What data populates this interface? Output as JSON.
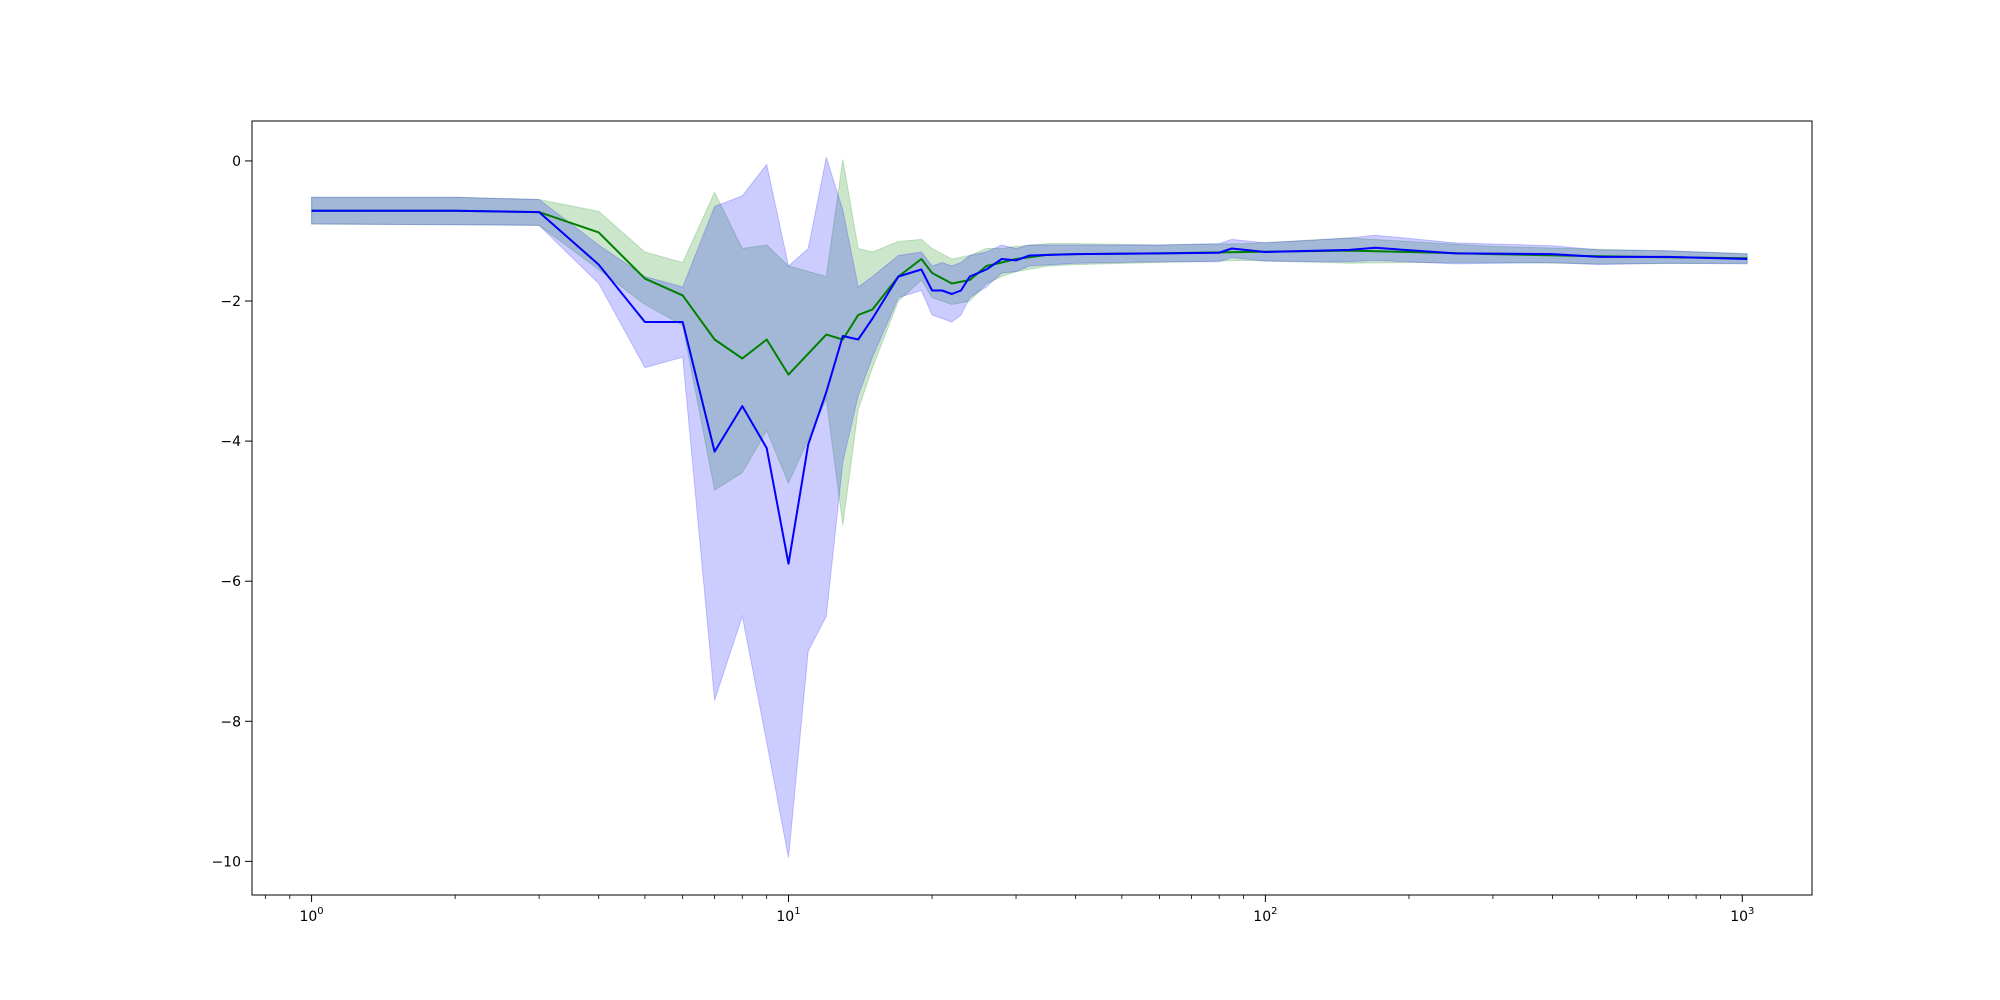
{
  "chart_data": {
    "type": "line",
    "title": "",
    "xlabel": "",
    "ylabel": "",
    "x_scale": "log",
    "xlim": [
      0.75,
      1400
    ],
    "ylim": [
      -10.48,
      0.57
    ],
    "grid": false,
    "legend": "none",
    "x_ticks": [
      {
        "value": 1,
        "base": "10",
        "exp": "0"
      },
      {
        "value": 10,
        "base": "10",
        "exp": "1"
      },
      {
        "value": 100,
        "base": "10",
        "exp": "2"
      },
      {
        "value": 1000,
        "base": "10",
        "exp": "3"
      }
    ],
    "y_ticks": [
      {
        "value": 0,
        "label": "0"
      },
      {
        "value": -2,
        "label": "−2"
      },
      {
        "value": -4,
        "label": "−4"
      },
      {
        "value": -6,
        "label": "−6"
      },
      {
        "value": -8,
        "label": "−8"
      },
      {
        "value": -10,
        "label": "−10"
      }
    ],
    "series": [
      {
        "color": "#008000",
        "band_color": "#008000",
        "points": [
          [
            1,
            -0.71,
            -0.52,
            -0.9
          ],
          [
            2,
            -0.71,
            -0.52,
            -0.91
          ],
          [
            3,
            -0.73,
            -0.55,
            -0.92
          ],
          [
            4,
            -1.02,
            -0.72,
            -1.55
          ],
          [
            5,
            -1.68,
            -1.3,
            -2.05
          ],
          [
            6,
            -1.92,
            -1.45,
            -2.35
          ],
          [
            7,
            -2.55,
            -0.45,
            -4.7
          ],
          [
            8,
            -2.82,
            -1.25,
            -4.45
          ],
          [
            9,
            -2.55,
            -1.2,
            -3.85
          ],
          [
            10,
            -3.05,
            -1.5,
            -4.6
          ],
          [
            12,
            -2.48,
            -1.65,
            -3.4
          ],
          [
            13,
            -2.55,
            0.02,
            -5.2
          ],
          [
            14,
            -2.2,
            -1.25,
            -3.55
          ],
          [
            15,
            -2.12,
            -1.3,
            -2.95
          ],
          [
            17,
            -1.65,
            -1.15,
            -2.0
          ],
          [
            19,
            -1.4,
            -1.12,
            -1.7
          ],
          [
            20,
            -1.6,
            -1.25,
            -1.95
          ],
          [
            22,
            -1.75,
            -1.4,
            -2.05
          ],
          [
            24,
            -1.7,
            -1.35,
            -2.0
          ],
          [
            26,
            -1.5,
            -1.25,
            -1.75
          ],
          [
            28,
            -1.45,
            -1.25,
            -1.65
          ],
          [
            30,
            -1.4,
            -1.22,
            -1.58
          ],
          [
            35,
            -1.34,
            -1.18,
            -1.5
          ],
          [
            40,
            -1.33,
            -1.18,
            -1.48
          ],
          [
            60,
            -1.32,
            -1.2,
            -1.45
          ],
          [
            90,
            -1.3,
            -1.18,
            -1.42
          ],
          [
            150,
            -1.28,
            -1.1,
            -1.46
          ],
          [
            200,
            -1.3,
            -1.15,
            -1.45
          ],
          [
            300,
            -1.33,
            -1.22,
            -1.45
          ],
          [
            500,
            -1.36,
            -1.26,
            -1.47
          ],
          [
            1024,
            -1.39,
            -1.32,
            -1.46
          ]
        ]
      },
      {
        "color": "#0000ff",
        "band_color": "#0000ff",
        "points": [
          [
            1,
            -0.71,
            -0.52,
            -0.9
          ],
          [
            2,
            -0.71,
            -0.52,
            -0.91
          ],
          [
            3,
            -0.73,
            -0.55,
            -0.92
          ],
          [
            4,
            -1.48,
            -1.2,
            -1.75
          ],
          [
            5,
            -2.3,
            -1.65,
            -2.95
          ],
          [
            6,
            -2.3,
            -1.8,
            -2.8
          ],
          [
            7,
            -4.15,
            -0.65,
            -7.7
          ],
          [
            8,
            -3.5,
            -0.5,
            -6.5
          ],
          [
            9,
            -4.1,
            -0.05,
            -8.3
          ],
          [
            10,
            -5.75,
            -1.5,
            -9.95
          ],
          [
            11,
            -4.05,
            -1.25,
            -7.0
          ],
          [
            12,
            -3.3,
            0.05,
            -6.5
          ],
          [
            13,
            -2.5,
            -0.7,
            -4.3
          ],
          [
            14,
            -2.55,
            -1.8,
            -3.35
          ],
          [
            15,
            -2.25,
            -1.65,
            -2.8
          ],
          [
            17,
            -1.65,
            -1.35,
            -1.95
          ],
          [
            19,
            -1.55,
            -1.3,
            -1.85
          ],
          [
            20,
            -1.85,
            -1.5,
            -2.2
          ],
          [
            21,
            -1.85,
            -1.45,
            -2.25
          ],
          [
            22,
            -1.9,
            -1.5,
            -2.3
          ],
          [
            23,
            -1.85,
            -1.45,
            -2.2
          ],
          [
            24,
            -1.65,
            -1.35,
            -1.95
          ],
          [
            26,
            -1.55,
            -1.3,
            -1.8
          ],
          [
            28,
            -1.4,
            -1.2,
            -1.6
          ],
          [
            30,
            -1.42,
            -1.25,
            -1.58
          ],
          [
            32,
            -1.35,
            -1.2,
            -1.5
          ],
          [
            40,
            -1.33,
            -1.2,
            -1.46
          ],
          [
            60,
            -1.32,
            -1.2,
            -1.44
          ],
          [
            80,
            -1.31,
            -1.18,
            -1.44
          ],
          [
            85,
            -1.25,
            -1.12,
            -1.38
          ],
          [
            100,
            -1.3,
            -1.17,
            -1.43
          ],
          [
            150,
            -1.27,
            -1.1,
            -1.44
          ],
          [
            170,
            -1.24,
            -1.06,
            -1.42
          ],
          [
            250,
            -1.32,
            -1.17,
            -1.47
          ],
          [
            400,
            -1.33,
            -1.21,
            -1.45
          ],
          [
            500,
            -1.37,
            -1.27,
            -1.48
          ],
          [
            700,
            -1.37,
            -1.28,
            -1.46
          ],
          [
            1024,
            -1.4,
            -1.33,
            -1.47
          ]
        ]
      }
    ]
  }
}
